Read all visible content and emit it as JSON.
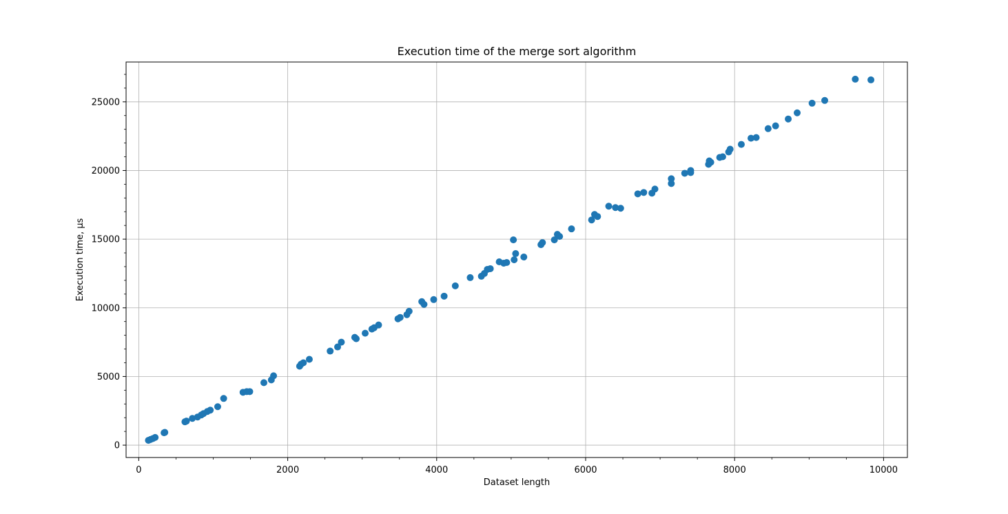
{
  "chart_data": {
    "type": "scatter",
    "title": "Execution time of the merge sort algorithm",
    "xlabel": "Dataset length",
    "ylabel": "Execution time, μs",
    "xlim": [
      -170,
      10320
    ],
    "ylim": [
      -900,
      27900
    ],
    "xticks": [
      0,
      2000,
      4000,
      6000,
      8000,
      10000
    ],
    "yticks": [
      0,
      5000,
      10000,
      15000,
      20000,
      25000
    ],
    "grid": true,
    "marker_color": "#1f77b4",
    "points": [
      [
        130,
        350
      ],
      [
        160,
        420
      ],
      [
        190,
        480
      ],
      [
        220,
        560
      ],
      [
        340,
        900
      ],
      [
        350,
        930
      ],
      [
        620,
        1700
      ],
      [
        640,
        1750
      ],
      [
        720,
        1950
      ],
      [
        790,
        2050
      ],
      [
        840,
        2200
      ],
      [
        870,
        2300
      ],
      [
        920,
        2450
      ],
      [
        960,
        2550
      ],
      [
        1060,
        2800
      ],
      [
        1140,
        3400
      ],
      [
        1400,
        3850
      ],
      [
        1450,
        3900
      ],
      [
        1490,
        3900
      ],
      [
        1680,
        4550
      ],
      [
        1780,
        4750
      ],
      [
        1810,
        5050
      ],
      [
        2160,
        5750
      ],
      [
        2180,
        5900
      ],
      [
        2210,
        6000
      ],
      [
        2290,
        6250
      ],
      [
        2570,
        6850
      ],
      [
        2670,
        7150
      ],
      [
        2720,
        7500
      ],
      [
        2900,
        7850
      ],
      [
        2920,
        7750
      ],
      [
        3040,
        8150
      ],
      [
        3130,
        8450
      ],
      [
        3160,
        8550
      ],
      [
        3220,
        8750
      ],
      [
        3480,
        9200
      ],
      [
        3510,
        9300
      ],
      [
        3600,
        9500
      ],
      [
        3630,
        9750
      ],
      [
        3800,
        10450
      ],
      [
        3830,
        10250
      ],
      [
        3960,
        10600
      ],
      [
        4100,
        10850
      ],
      [
        4250,
        11600
      ],
      [
        4450,
        12200
      ],
      [
        4600,
        12300
      ],
      [
        4640,
        12500
      ],
      [
        4680,
        12800
      ],
      [
        4720,
        12850
      ],
      [
        4840,
        13350
      ],
      [
        4900,
        13250
      ],
      [
        4940,
        13300
      ],
      [
        5030,
        14950
      ],
      [
        5040,
        13500
      ],
      [
        5060,
        13950
      ],
      [
        5170,
        13700
      ],
      [
        5400,
        14600
      ],
      [
        5420,
        14750
      ],
      [
        5580,
        14950
      ],
      [
        5620,
        15350
      ],
      [
        5650,
        15200
      ],
      [
        5810,
        15750
      ],
      [
        6080,
        16400
      ],
      [
        6120,
        16800
      ],
      [
        6160,
        16650
      ],
      [
        6310,
        17400
      ],
      [
        6400,
        17300
      ],
      [
        6470,
        17250
      ],
      [
        6700,
        18300
      ],
      [
        6780,
        18400
      ],
      [
        6890,
        18350
      ],
      [
        6930,
        18650
      ],
      [
        7150,
        19050
      ],
      [
        7150,
        19400
      ],
      [
        7330,
        19800
      ],
      [
        7410,
        20000
      ],
      [
        7410,
        19850
      ],
      [
        7650,
        20450
      ],
      [
        7660,
        20700
      ],
      [
        7680,
        20600
      ],
      [
        7800,
        20950
      ],
      [
        7840,
        21000
      ],
      [
        7920,
        21350
      ],
      [
        7940,
        21550
      ],
      [
        8090,
        21900
      ],
      [
        8220,
        22350
      ],
      [
        8290,
        22400
      ],
      [
        8450,
        23050
      ],
      [
        8550,
        23250
      ],
      [
        8720,
        23750
      ],
      [
        8840,
        24200
      ],
      [
        9040,
        24900
      ],
      [
        9210,
        25100
      ],
      [
        9620,
        26650
      ],
      [
        9830,
        26600
      ]
    ]
  }
}
